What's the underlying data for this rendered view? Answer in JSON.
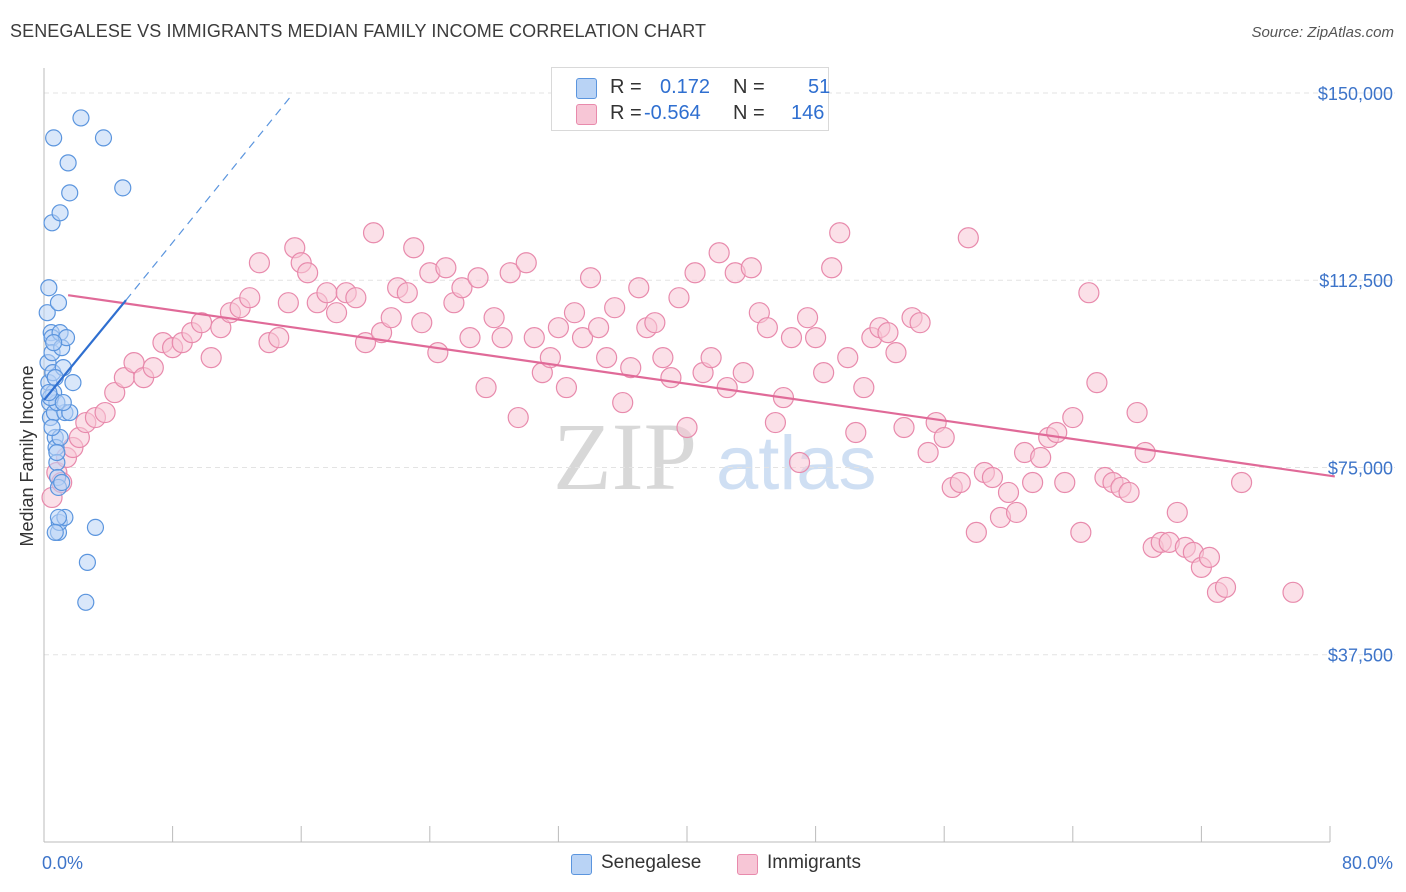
{
  "title": "SENEGALESE VS IMMIGRANTS MEDIAN FAMILY INCOME CORRELATION CHART",
  "source": "Source: ZipAtlas.com",
  "watermark": {
    "zip": "ZIP",
    "atlas": "atlas"
  },
  "colors": {
    "senegalese_fill": "#b9d3f5",
    "senegalese_stroke": "#5b95de",
    "senegalese_line": "#2f6fd0",
    "immigrants_fill": "#f7c6d6",
    "immigrants_stroke": "#e88aac",
    "immigrants_line": "#e06a98",
    "axis_label": "#3d74c9"
  },
  "legend": {
    "rows": [
      {
        "r_label": "R =",
        "r_value": "0.172",
        "n_label": "N =",
        "n_value": "51"
      },
      {
        "r_label": "R =",
        "r_value": "-0.564",
        "n_label": "N =",
        "n_value": "146"
      }
    ]
  },
  "bottom_legend": {
    "senegalese": "Senegalese",
    "immigrants": "Immigrants"
  },
  "chart_data": {
    "type": "scatter",
    "title": "SENEGALESE VS IMMIGRANTS MEDIAN FAMILY INCOME CORRELATION CHART",
    "xlabel": "",
    "ylabel": "Median Family Income",
    "xlim": [
      0,
      80
    ],
    "ylim": [
      0,
      155000
    ],
    "x_tick_labels": {
      "left": "0.0%",
      "right": "80.0%"
    },
    "y_ticks": [
      {
        "value": 37500,
        "label": "$37,500"
      },
      {
        "value": 75000,
        "label": "$75,000"
      },
      {
        "value": 112500,
        "label": "$112,500"
      },
      {
        "value": 150000,
        "label": "$150,000"
      }
    ],
    "grid": "horizontal dashed",
    "legend_position": "top-center",
    "series": [
      {
        "name": "Senegalese",
        "points": [
          [
            0.2,
            106000
          ],
          [
            0.25,
            96000
          ],
          [
            0.3,
            92000
          ],
          [
            0.35,
            88000
          ],
          [
            0.4,
            85000
          ],
          [
            0.45,
            102000
          ],
          [
            0.3,
            111000
          ],
          [
            0.5,
            101000
          ],
          [
            0.5,
            98000
          ],
          [
            0.55,
            94000
          ],
          [
            0.6,
            90000
          ],
          [
            0.65,
            86000
          ],
          [
            0.7,
            81000
          ],
          [
            0.75,
            79000
          ],
          [
            0.8,
            76000
          ],
          [
            0.85,
            73000
          ],
          [
            0.9,
            71000
          ],
          [
            0.9,
            62000
          ],
          [
            0.95,
            64000
          ],
          [
            0.5,
            124000
          ],
          [
            0.6,
            141000
          ],
          [
            0.9,
            108000
          ],
          [
            1.0,
            102000
          ],
          [
            1.1,
            99000
          ],
          [
            1.2,
            95000
          ],
          [
            1.3,
            86000
          ],
          [
            1.4,
            101000
          ],
          [
            1.5,
            136000
          ],
          [
            1.6,
            130000
          ],
          [
            1.0,
            126000
          ],
          [
            0.8,
            88000
          ],
          [
            0.7,
            93000
          ],
          [
            1.0,
            81000
          ],
          [
            1.1,
            72000
          ],
          [
            1.3,
            65000
          ],
          [
            1.6,
            86000
          ],
          [
            1.8,
            92000
          ],
          [
            2.3,
            145000
          ],
          [
            2.7,
            56000
          ],
          [
            3.2,
            63000
          ],
          [
            3.7,
            141000
          ],
          [
            4.9,
            131000
          ],
          [
            2.6,
            48000
          ],
          [
            0.4,
            89000
          ],
          [
            0.6,
            100000
          ],
          [
            1.2,
            88000
          ],
          [
            0.9,
            65000
          ],
          [
            0.7,
            62000
          ],
          [
            0.5,
            83000
          ],
          [
            0.8,
            78000
          ],
          [
            0.3,
            90000
          ]
        ],
        "trend": {
          "x": [
            0,
            5.1
          ],
          "y": [
            88500,
            108500
          ],
          "extended_x": [
            5.1,
            15.4
          ],
          "extended_y": [
            108500,
            149500
          ]
        }
      },
      {
        "name": "Immigrants",
        "points": [
          [
            0.5,
            69000
          ],
          [
            0.8,
            74000
          ],
          [
            1.1,
            72000
          ],
          [
            1.4,
            77000
          ],
          [
            1.8,
            79000
          ],
          [
            2.2,
            81000
          ],
          [
            2.6,
            84000
          ],
          [
            3.2,
            85000
          ],
          [
            3.8,
            86000
          ],
          [
            4.4,
            90000
          ],
          [
            5.0,
            93000
          ],
          [
            5.6,
            96000
          ],
          [
            6.2,
            93000
          ],
          [
            6.8,
            95000
          ],
          [
            7.4,
            100000
          ],
          [
            8.0,
            99000
          ],
          [
            8.6,
            100000
          ],
          [
            9.2,
            102000
          ],
          [
            9.8,
            104000
          ],
          [
            10.4,
            97000
          ],
          [
            11.0,
            103000
          ],
          [
            11.6,
            106000
          ],
          [
            12.2,
            107000
          ],
          [
            12.8,
            109000
          ],
          [
            13.4,
            116000
          ],
          [
            14.0,
            100000
          ],
          [
            14.6,
            101000
          ],
          [
            15.2,
            108000
          ],
          [
            15.6,
            119000
          ],
          [
            16.0,
            116000
          ],
          [
            16.4,
            114000
          ],
          [
            17.0,
            108000
          ],
          [
            17.6,
            110000
          ],
          [
            18.2,
            106000
          ],
          [
            18.8,
            110000
          ],
          [
            19.4,
            109000
          ],
          [
            20.0,
            100000
          ],
          [
            20.5,
            122000
          ],
          [
            21.0,
            102000
          ],
          [
            21.6,
            105000
          ],
          [
            22.0,
            111000
          ],
          [
            22.6,
            110000
          ],
          [
            23.0,
            119000
          ],
          [
            23.5,
            104000
          ],
          [
            24.0,
            114000
          ],
          [
            24.5,
            98000
          ],
          [
            25.0,
            115000
          ],
          [
            25.5,
            108000
          ],
          [
            26.0,
            111000
          ],
          [
            26.5,
            101000
          ],
          [
            27.0,
            113000
          ],
          [
            27.5,
            91000
          ],
          [
            28.0,
            105000
          ],
          [
            28.5,
            101000
          ],
          [
            29.0,
            114000
          ],
          [
            29.5,
            85000
          ],
          [
            30.0,
            116000
          ],
          [
            30.5,
            101000
          ],
          [
            31.0,
            94000
          ],
          [
            31.5,
            97000
          ],
          [
            32.0,
            103000
          ],
          [
            32.5,
            91000
          ],
          [
            33.0,
            106000
          ],
          [
            33.5,
            101000
          ],
          [
            34.0,
            113000
          ],
          [
            34.5,
            103000
          ],
          [
            35.0,
            97000
          ],
          [
            35.5,
            107000
          ],
          [
            36.0,
            88000
          ],
          [
            36.5,
            95000
          ],
          [
            37.0,
            111000
          ],
          [
            37.5,
            103000
          ],
          [
            38.0,
            104000
          ],
          [
            38.5,
            97000
          ],
          [
            39.0,
            93000
          ],
          [
            39.5,
            109000
          ],
          [
            40.0,
            83000
          ],
          [
            40.5,
            114000
          ],
          [
            41.0,
            94000
          ],
          [
            41.5,
            97000
          ],
          [
            42.0,
            118000
          ],
          [
            42.5,
            91000
          ],
          [
            43.0,
            114000
          ],
          [
            43.5,
            94000
          ],
          [
            44.0,
            115000
          ],
          [
            44.5,
            106000
          ],
          [
            45.0,
            103000
          ],
          [
            45.5,
            84000
          ],
          [
            46.0,
            89000
          ],
          [
            46.5,
            101000
          ],
          [
            47.0,
            76000
          ],
          [
            47.5,
            105000
          ],
          [
            48.0,
            101000
          ],
          [
            48.5,
            94000
          ],
          [
            49.0,
            115000
          ],
          [
            49.5,
            122000
          ],
          [
            50.0,
            97000
          ],
          [
            50.5,
            82000
          ],
          [
            51.0,
            91000
          ],
          [
            51.5,
            101000
          ],
          [
            52.0,
            103000
          ],
          [
            52.5,
            102000
          ],
          [
            53.0,
            98000
          ],
          [
            53.5,
            83000
          ],
          [
            54.0,
            105000
          ],
          [
            54.5,
            104000
          ],
          [
            55.0,
            78000
          ],
          [
            55.5,
            84000
          ],
          [
            56.0,
            81000
          ],
          [
            56.5,
            71000
          ],
          [
            57.0,
            72000
          ],
          [
            57.5,
            121000
          ],
          [
            58.0,
            62000
          ],
          [
            58.5,
            74000
          ],
          [
            59.0,
            73000
          ],
          [
            59.5,
            65000
          ],
          [
            60.0,
            70000
          ],
          [
            60.5,
            66000
          ],
          [
            61.0,
            78000
          ],
          [
            61.5,
            72000
          ],
          [
            62.0,
            77000
          ],
          [
            62.5,
            81000
          ],
          [
            63.0,
            82000
          ],
          [
            63.5,
            72000
          ],
          [
            64.0,
            85000
          ],
          [
            64.5,
            62000
          ],
          [
            65.0,
            110000
          ],
          [
            65.5,
            92000
          ],
          [
            66.0,
            73000
          ],
          [
            66.5,
            72000
          ],
          [
            67.0,
            71000
          ],
          [
            67.5,
            70000
          ],
          [
            68.0,
            86000
          ],
          [
            68.5,
            78000
          ],
          [
            69.0,
            59000
          ],
          [
            69.5,
            60000
          ],
          [
            70.0,
            60000
          ],
          [
            70.5,
            66000
          ],
          [
            71.0,
            59000
          ],
          [
            71.5,
            58000
          ],
          [
            72.0,
            55000
          ],
          [
            72.5,
            57000
          ],
          [
            73.0,
            50000
          ],
          [
            73.5,
            51000
          ],
          [
            77.7,
            50000
          ],
          [
            74.5,
            72000
          ]
        ],
        "trend": {
          "x": [
            1.5,
            80.3
          ],
          "y": [
            109500,
            73200
          ]
        }
      }
    ]
  }
}
